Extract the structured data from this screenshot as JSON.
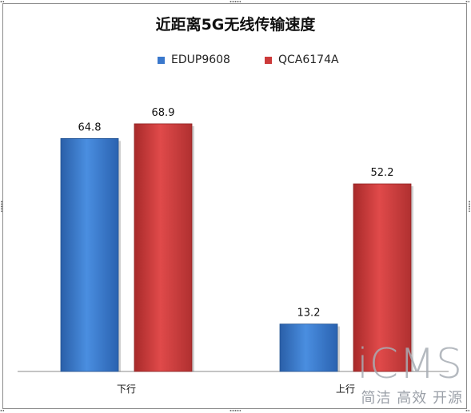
{
  "chart_data": {
    "type": "bar",
    "title": "近距离5G无线传输速度",
    "categories": [
      "下行",
      "上行"
    ],
    "series": [
      {
        "name": "EDUP9608",
        "values": [
          64.8,
          13.2
        ],
        "color": "#3a78cc"
      },
      {
        "name": "QCA6174A",
        "values": [
          68.9,
          52.2
        ],
        "color": "#cc3a3a"
      }
    ],
    "xlabel": "",
    "ylabel": "",
    "ylim": [
      0,
      70
    ],
    "grid": false,
    "legend_position": "top"
  },
  "watermark": {
    "logo": "iCMS",
    "slogan": "简洁 高效 开源"
  }
}
